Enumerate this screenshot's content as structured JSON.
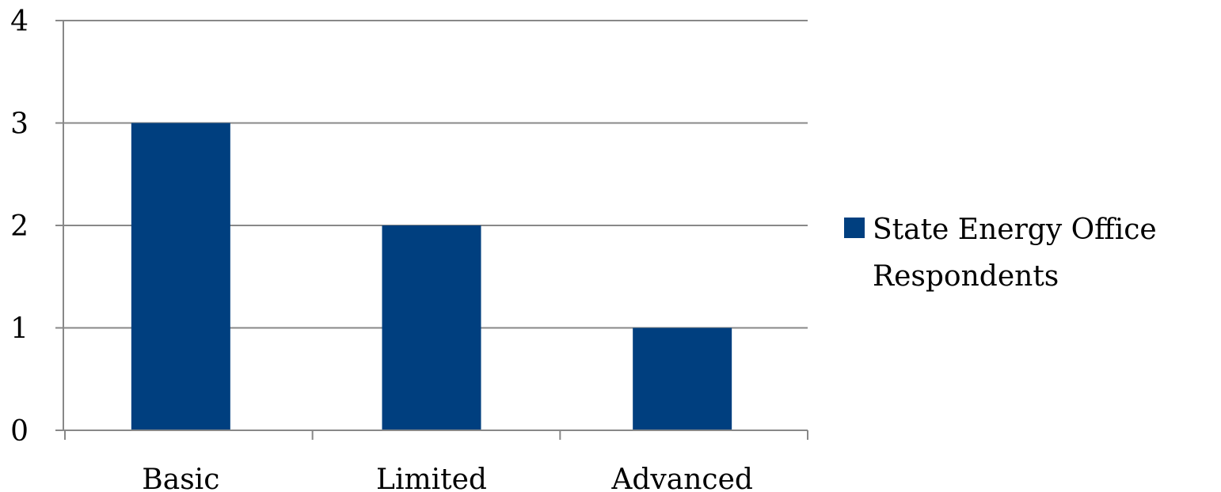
{
  "chart_data": {
    "type": "bar",
    "categories": [
      "Basic",
      "Limited",
      "Advanced"
    ],
    "series": [
      {
        "name": "State Energy Office Respondents",
        "values": [
          3,
          2,
          1
        ],
        "color": "#003f7f"
      }
    ],
    "ylim": [
      0,
      4
    ],
    "yticks": [
      0,
      1,
      2,
      3,
      4
    ],
    "grid": true,
    "gridColor": "#888888",
    "legend": {
      "position": "right",
      "lines": [
        "State Energy Office",
        "Respondents"
      ]
    }
  }
}
